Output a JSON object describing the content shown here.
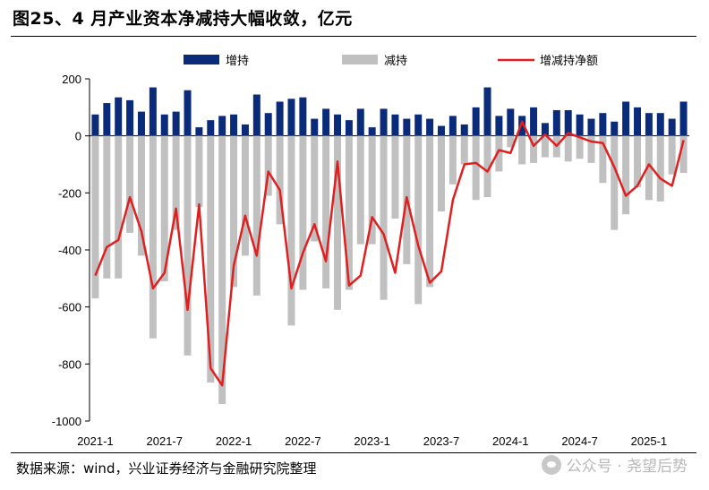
{
  "title": "图25、4 月产业资本净减持大幅收敛，亿元",
  "source": "数据来源：wind，兴业证券经济与金融研究院整理",
  "watermark": "公众号 · 尧望后势",
  "colors": {
    "increase": "#0a2a7a",
    "decrease": "#c0c0c0",
    "net": "#e02020"
  },
  "chart_data": {
    "type": "bar",
    "title": "图25、4 月产业资本净减持大幅收敛，亿元",
    "xlabel": "",
    "ylabel": "",
    "ylim": [
      -1000,
      200
    ],
    "yticks": [
      200,
      0,
      -200,
      -400,
      -600,
      -800,
      -1000
    ],
    "legend_position": "top",
    "grid": false,
    "categories": [
      "2021-1",
      "2021-2",
      "2021-3",
      "2021-4",
      "2021-5",
      "2021-6",
      "2021-7",
      "2021-8",
      "2021-9",
      "2021-10",
      "2021-11",
      "2021-12",
      "2022-1",
      "2022-2",
      "2022-3",
      "2022-4",
      "2022-5",
      "2022-6",
      "2022-7",
      "2022-8",
      "2022-9",
      "2022-10",
      "2022-11",
      "2022-12",
      "2023-1",
      "2023-2",
      "2023-3",
      "2023-4",
      "2023-5",
      "2023-6",
      "2023-7",
      "2023-8",
      "2023-9",
      "2023-10",
      "2023-11",
      "2023-12",
      "2024-1",
      "2024-2",
      "2024-3",
      "2024-4",
      "2024-5",
      "2024-6",
      "2024-7",
      "2024-8",
      "2024-9",
      "2024-10",
      "2024-11",
      "2024-12",
      "2025-1",
      "2025-2",
      "2025-3",
      "2025-4"
    ],
    "xtick_labels": [
      "2021-1",
      "2021-7",
      "2022-1",
      "2022-7",
      "2023-1",
      "2023-7",
      "2024-1",
      "2024-7",
      "2025-1"
    ],
    "series": [
      {
        "name": "增持",
        "kind": "bar",
        "values": [
          75,
          115,
          135,
          125,
          85,
          170,
          75,
          85,
          160,
          30,
          55,
          70,
          75,
          40,
          145,
          80,
          120,
          130,
          135,
          60,
          95,
          75,
          55,
          95,
          30,
          95,
          75,
          60,
          75,
          60,
          35,
          70,
          40,
          100,
          170,
          70,
          95,
          70,
          100,
          45,
          90,
          90,
          75,
          60,
          80,
          50,
          120,
          100,
          80,
          80,
          60,
          120
        ]
      },
      {
        "name": "减持",
        "kind": "bar",
        "values": [
          -570,
          -500,
          -500,
          -340,
          -420,
          -710,
          -510,
          -330,
          -770,
          -250,
          -865,
          -940,
          -530,
          -420,
          -560,
          -210,
          -310,
          -665,
          -540,
          -370,
          -535,
          -610,
          -540,
          -380,
          -380,
          -575,
          -290,
          -450,
          -590,
          -530,
          -265,
          -170,
          -100,
          -225,
          -215,
          -125,
          -40,
          -100,
          -95,
          -75,
          -75,
          -90,
          -80,
          -95,
          -165,
          -330,
          -275,
          -180,
          -225,
          -230,
          -135,
          -130
        ]
      },
      {
        "name": "增减持净额",
        "kind": "line",
        "values": [
          -490,
          -390,
          -365,
          -215,
          -335,
          -535,
          -480,
          -255,
          -610,
          -240,
          -815,
          -875,
          -455,
          -280,
          -420,
          -125,
          -190,
          -535,
          -410,
          -310,
          -440,
          -90,
          -525,
          -490,
          -285,
          -345,
          -480,
          -215,
          -385,
          -515,
          -475,
          -225,
          -100,
          -95,
          -125,
          -50,
          -60,
          50,
          -35,
          5,
          -35,
          10,
          -5,
          -20,
          -25,
          -110,
          -210,
          -175,
          -100,
          -150,
          -175,
          -15
        ]
      }
    ]
  }
}
